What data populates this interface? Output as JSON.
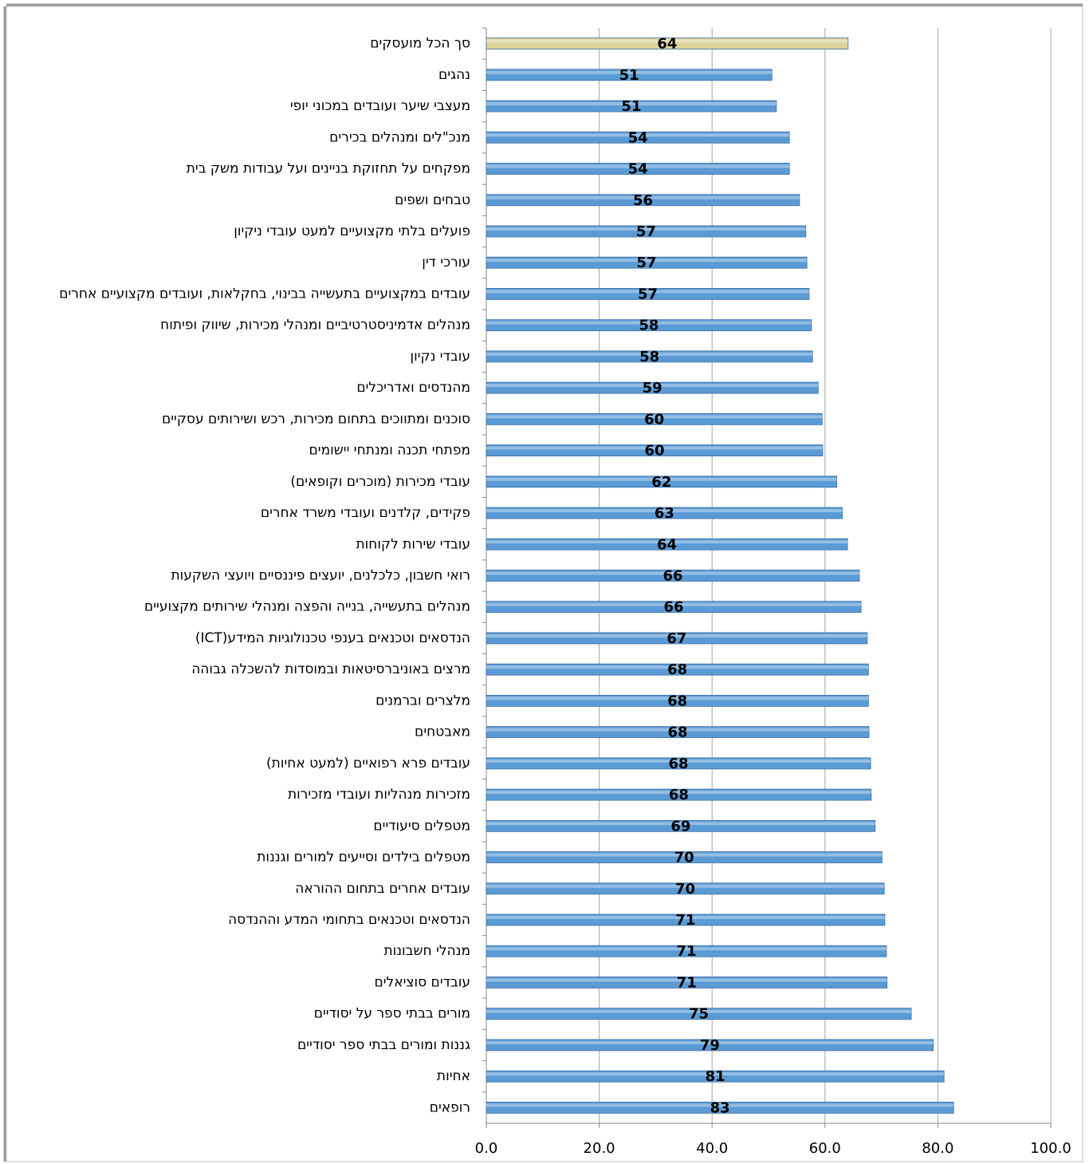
{
  "chart_data": {
    "type": "bar",
    "orientation": "horizontal",
    "categories": [
      "סך הכל מועסקים",
      "נהגים",
      "מעצבי שיער ועובדים במכוני יופי",
      "מנכ\"לים ומנהלים בכירים",
      "מפקחים על תחזוקת בניינים ועל עבודות משק בית",
      "טבחים ושפים",
      "פועלים בלתי מקצועיים למעט עובדי ניקיון",
      "עורכי דין",
      "עובדים במקצועיים בתעשייה בבינוי, בחקלאות, ועובדים מקצועיים אחרים",
      "מנהלים אדמיניסטרטיביים ומנהלי מכירות, שיווק ופיתוח",
      "עובדי נקיון",
      "מהנדסים ואדריכלים",
      "סוכנים ומתווכים בתחום מכירות, רכש ושירותים עסקיים",
      "מפתחי תכנה ומנתחי יישומים",
      "עובדי מכירות (מוכרים וקופאים)",
      "פקידים, קלדנים ועובדי משרד אחרים",
      "עובדי שירות לקוחות",
      "רואי חשבון, כלכלנים, יועצים פיננסיים ויועצי השקעות",
      "מנהלים בתעשייה, בנייה והפצה ומנהלי שירותים מקצועיים",
      "הנדסאים וטכנאים בענפי טכנולוגיות המידע(ICT)",
      "מרצים באוניברסיטאות ובמוסדות להשכלה גבוהה",
      "מלצרים וברמנים",
      "מאבטחים",
      "עובדים פרא רפואיים (למעט אחיות)",
      "מזכירות מנהליות ועובדי מזכירות",
      "מטפלים סיעודיים",
      "מטפלים בילדים וסייעים למורים וגננות",
      "עובדים אחרים בתחום ההוראה",
      "הנדסאים וטכנאים בתחומי המדע וההנדסה",
      "מנהלי חשבונות",
      "עובדים סוציאלים",
      "מורים בבתי ספר על יסודיים",
      "גננות ומורים בבתי ספר יסודיים",
      "אחיות",
      "רופאים"
    ],
    "values": [
      64.1,
      50.6,
      51.4,
      53.7,
      53.7,
      55.5,
      56.6,
      56.8,
      57.2,
      57.6,
      57.8,
      58.8,
      59.5,
      59.6,
      62.1,
      63.1,
      64.0,
      66.1,
      66.4,
      67.5,
      67.7,
      67.7,
      67.8,
      68.1,
      68.2,
      68.9,
      70.1,
      70.5,
      70.6,
      70.9,
      71.0,
      75.3,
      79.2,
      81.1,
      82.8
    ],
    "value_labels": [
      "64",
      "51",
      "51",
      "54",
      "54",
      "56",
      "57",
      "57",
      "57",
      "58",
      "58",
      "59",
      "60",
      "60",
      "62",
      "63",
      "64",
      "66",
      "66",
      "67",
      "68",
      "68",
      "68",
      "68",
      "68",
      "69",
      "70",
      "70",
      "71",
      "71",
      "71",
      "75",
      "79",
      "81",
      "83"
    ],
    "colors": [
      "#ddd39a",
      "#5b9bd5",
      "#5b9bd5",
      "#5b9bd5",
      "#5b9bd5",
      "#5b9bd5",
      "#5b9bd5",
      "#5b9bd5",
      "#5b9bd5",
      "#5b9bd5",
      "#5b9bd5",
      "#5b9bd5",
      "#5b9bd5",
      "#5b9bd5",
      "#5b9bd5",
      "#5b9bd5",
      "#5b9bd5",
      "#5b9bd5",
      "#5b9bd5",
      "#5b9bd5",
      "#5b9bd5",
      "#5b9bd5",
      "#5b9bd5",
      "#5b9bd5",
      "#5b9bd5",
      "#5b9bd5",
      "#5b9bd5",
      "#5b9bd5",
      "#5b9bd5",
      "#5b9bd5",
      "#5b9bd5",
      "#5b9bd5",
      "#5b9bd5",
      "#5b9bd5",
      "#5b9bd5"
    ],
    "xlim": [
      0,
      100
    ],
    "xticks": [
      {
        "value": 0,
        "label": "0.0"
      },
      {
        "value": 20,
        "label": "20.0"
      },
      {
        "value": 40,
        "label": "40.0"
      },
      {
        "value": 60,
        "label": "60.0"
      },
      {
        "value": 80,
        "label": "80.0"
      },
      {
        "value": 100,
        "label": "100.0"
      }
    ],
    "grid": true
  }
}
